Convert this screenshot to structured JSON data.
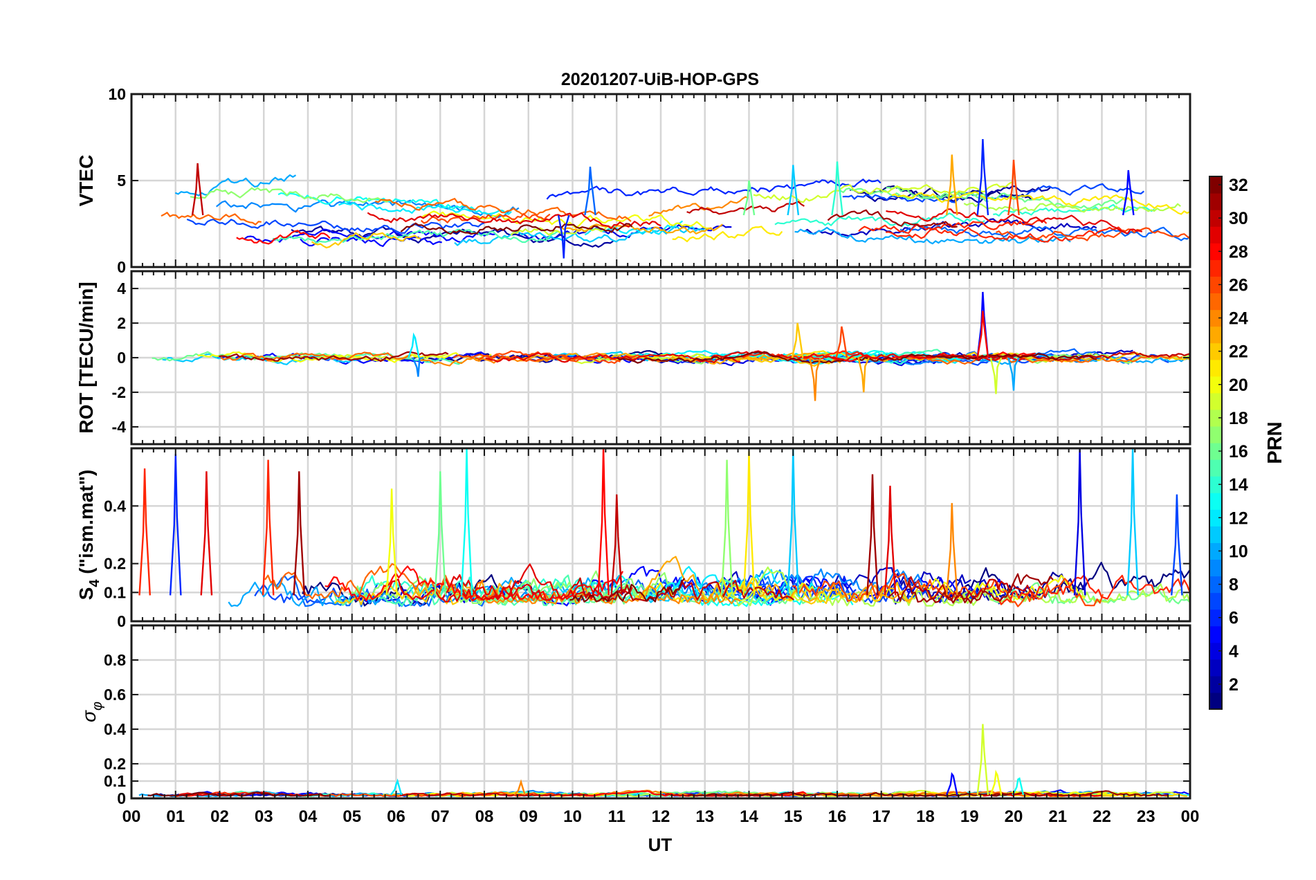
{
  "chart_data": {
    "type": "line",
    "title": "20201207-UiB-HOP-GPS",
    "xlabel": "UT",
    "x_tick_labels": [
      "00",
      "01",
      "02",
      "03",
      "04",
      "05",
      "06",
      "07",
      "08",
      "09",
      "10",
      "11",
      "12",
      "13",
      "14",
      "15",
      "16",
      "17",
      "18",
      "19",
      "20",
      "21",
      "22",
      "23",
      "00"
    ],
    "x_range_hours": [
      0,
      24
    ],
    "grid": true,
    "panels": [
      {
        "id": "vtec",
        "ylabel": "VTEC",
        "ylim": [
          0,
          10
        ],
        "yticks": [
          0,
          5,
          10
        ],
        "ytick_labels": [
          "0",
          "5",
          "10"
        ],
        "baseline": 3.0,
        "spread": 0.8,
        "noise": 0.35,
        "features": [
          {
            "x": 1.5,
            "y": 6.0,
            "series": 30
          },
          {
            "x": 10.4,
            "y": 5.8,
            "series": 8
          },
          {
            "x": 14.0,
            "y": 5.0,
            "series": 16
          },
          {
            "x": 15.0,
            "y": 5.9,
            "series": 11
          },
          {
            "x": 16.0,
            "y": 6.1,
            "series": 14
          },
          {
            "x": 18.6,
            "y": 6.5,
            "series": 23
          },
          {
            "x": 19.3,
            "y": 7.4,
            "series": 6
          },
          {
            "x": 20.0,
            "y": 6.2,
            "series": 26
          },
          {
            "x": 22.6,
            "y": 5.6,
            "series": 5
          },
          {
            "x": 9.8,
            "y": 0.5,
            "series": 6
          }
        ]
      },
      {
        "id": "rot",
        "ylabel": "ROT [TECU/min]",
        "ylim": [
          -5,
          5
        ],
        "yticks": [
          -4,
          -2,
          0,
          2,
          4
        ],
        "ytick_labels": [
          "-4",
          "-2",
          "0",
          "2",
          "4"
        ],
        "baseline": 0.0,
        "spread": 0.05,
        "noise": 0.25,
        "features": [
          {
            "x": 6.4,
            "y": 1.3,
            "series": 12
          },
          {
            "x": 6.5,
            "y": -1.1,
            "series": 9
          },
          {
            "x": 15.1,
            "y": 2.0,
            "series": 22
          },
          {
            "x": 15.5,
            "y": -2.5,
            "series": 24
          },
          {
            "x": 16.1,
            "y": 1.8,
            "series": 26
          },
          {
            "x": 16.6,
            "y": -2.0,
            "series": 23
          },
          {
            "x": 19.3,
            "y": 3.8,
            "series": 5
          },
          {
            "x": 19.3,
            "y": 2.7,
            "series": 28
          },
          {
            "x": 19.6,
            "y": -2.1,
            "series": 19
          },
          {
            "x": 20.0,
            "y": -1.9,
            "series": 10
          }
        ]
      },
      {
        "id": "s4",
        "ylabel": "S4 (\"ism.mat\")",
        "ylabel_main": "S",
        "ylabel_sub": "4",
        "ylabel_rest": " (\"ism.mat\")",
        "ylim": [
          0,
          0.6
        ],
        "yticks": [
          0,
          0.1,
          0.2,
          0.4
        ],
        "ytick_labels": [
          "0",
          "0.1",
          "0.2",
          "0.4"
        ],
        "baseline": 0.09,
        "spread": 0.03,
        "noise": 0.06,
        "features": [
          {
            "x": 0.3,
            "y": 0.53,
            "series": 27
          },
          {
            "x": 1.0,
            "y": 0.58,
            "series": 6
          },
          {
            "x": 1.7,
            "y": 0.52,
            "series": 29
          },
          {
            "x": 3.1,
            "y": 0.56,
            "series": 27
          },
          {
            "x": 3.8,
            "y": 0.52,
            "series": 31
          },
          {
            "x": 5.9,
            "y": 0.46,
            "series": 20
          },
          {
            "x": 7.0,
            "y": 0.52,
            "series": 16
          },
          {
            "x": 7.6,
            "y": 0.6,
            "series": 13
          },
          {
            "x": 10.7,
            "y": 0.6,
            "series": 28
          },
          {
            "x": 11.0,
            "y": 0.44,
            "series": 30
          },
          {
            "x": 13.5,
            "y": 0.56,
            "series": 17
          },
          {
            "x": 14.0,
            "y": 0.59,
            "series": 21
          },
          {
            "x": 15.0,
            "y": 0.6,
            "series": 11
          },
          {
            "x": 16.8,
            "y": 0.51,
            "series": 31
          },
          {
            "x": 17.2,
            "y": 0.47,
            "series": 29
          },
          {
            "x": 18.6,
            "y": 0.41,
            "series": 24
          },
          {
            "x": 21.5,
            "y": 0.6,
            "series": 4
          },
          {
            "x": 22.7,
            "y": 0.6,
            "series": 11
          },
          {
            "x": 23.7,
            "y": 0.44,
            "series": 7
          }
        ]
      },
      {
        "id": "sigma",
        "ylabel": "σ φ",
        "ylabel_main": "σ",
        "ylabel_sub": "φ",
        "ylim": [
          0,
          1
        ],
        "yticks": [
          0,
          0.1,
          0.2,
          0.4,
          0.6,
          0.8
        ],
        "ytick_labels": [
          "0",
          "0.1",
          "0.2",
          "0.4",
          "0.6",
          "0.8"
        ],
        "baseline": 0.02,
        "spread": 0.005,
        "noise": 0.015,
        "features": [
          {
            "x": 19.3,
            "y": 0.43,
            "series": 19
          },
          {
            "x": 19.6,
            "y": 0.15,
            "series": 20
          },
          {
            "x": 18.6,
            "y": 0.14,
            "series": 5
          },
          {
            "x": 6.0,
            "y": 0.08,
            "series": 12
          },
          {
            "x": 8.8,
            "y": 0.07,
            "series": 24
          },
          {
            "x": 20.1,
            "y": 0.11,
            "series": 13
          }
        ]
      }
    ],
    "series_count": 32,
    "colorbar": {
      "label": "PRN",
      "range": [
        1,
        32
      ],
      "tick_values": [
        2,
        4,
        6,
        8,
        10,
        12,
        14,
        16,
        18,
        20,
        22,
        24,
        26,
        28,
        30,
        32
      ],
      "tick_labels": [
        "2",
        "4",
        "6",
        "8",
        "10",
        "12",
        "14",
        "16",
        "18",
        "20",
        "22",
        "24",
        "26",
        "28",
        "30",
        "32"
      ],
      "colormap": "jet"
    }
  }
}
